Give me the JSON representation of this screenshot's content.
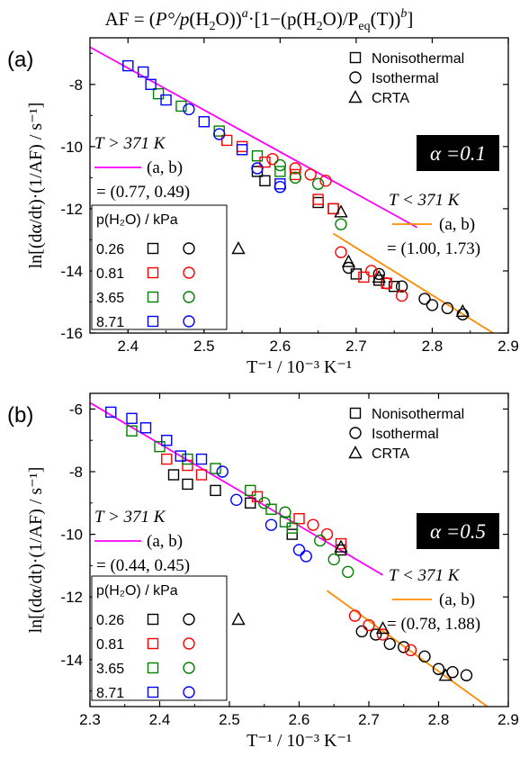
{
  "header": {
    "formula_prefix": "AF = (",
    "p_circ": "P°",
    "slash_p": "/p",
    "h2o": "(H",
    "h2o_sub": "2",
    "h2o_end": "O))",
    "exp_a": "a",
    "dot_bracket": "·[1−(p(H",
    "sub2": "2",
    "o_slash": "O)/P",
    "eq": "eq",
    "t_part": "(T))",
    "exp_b": "b",
    "close": "]"
  },
  "legend_table_title": "p(H₂O) / kPa",
  "marker_legend": [
    "Nonisothermal",
    "Isothermal",
    "CRTA"
  ],
  "colors": {
    "black": "#000000",
    "red": "#ff0000",
    "green": "#008000",
    "blue": "#0000ff",
    "magenta": "#ff00ff",
    "orange": "#ff8c00"
  },
  "chart_data": [
    {
      "type": "scatter",
      "panel_label": "(a)",
      "alpha_label": "α =0.1",
      "xlabel": "T⁻¹ / 10⁻³ K⁻¹",
      "ylabel": "ln[(dα/dt)·(1/AF) / s⁻¹]",
      "xlim": [
        2.35,
        2.9
      ],
      "ylim": [
        -16,
        -6.5
      ],
      "xticks": [
        2.4,
        2.5,
        2.6,
        2.7,
        2.8,
        2.9
      ],
      "yticks": [
        -8,
        -10,
        -12,
        -14,
        -16
      ],
      "high_T": {
        "label": "T > 371 K",
        "ab": "(a, b)",
        "values": "= (0.77, 0.49)",
        "line": [
          [
            2.35,
            -6.8
          ],
          [
            2.78,
            -12.6
          ]
        ]
      },
      "low_T": {
        "label": "T < 371 K",
        "ab": "(a, b)",
        "values": "= (1.00, 1.73)",
        "line": [
          [
            2.67,
            -12.8
          ],
          [
            2.88,
            -16.0
          ]
        ]
      },
      "pressures": [
        {
          "p": "0.26",
          "color": "black",
          "iso": true,
          "crta": true
        },
        {
          "p": "0.81",
          "color": "red",
          "iso": true,
          "crta": false
        },
        {
          "p": "3.65",
          "color": "green",
          "iso": true,
          "crta": false
        },
        {
          "p": "8.71",
          "color": "blue",
          "iso": true,
          "crta": false
        }
      ],
      "series": [
        {
          "marker": "square",
          "color": "black",
          "points": [
            [
              2.57,
              -10.8
            ],
            [
              2.58,
              -11.1
            ],
            [
              2.65,
              -11.8
            ],
            [
              2.67,
              -12.0
            ],
            [
              2.7,
              -14.1
            ],
            [
              2.73,
              -14.3
            ],
            [
              2.75,
              -14.5
            ]
          ]
        },
        {
          "marker": "square",
          "color": "red",
          "points": [
            [
              2.53,
              -9.8
            ],
            [
              2.55,
              -10.0
            ],
            [
              2.58,
              -10.5
            ],
            [
              2.62,
              -10.9
            ],
            [
              2.65,
              -11.7
            ],
            [
              2.67,
              -12.0
            ],
            [
              2.71,
              -14.2
            ],
            [
              2.74,
              -14.4
            ]
          ]
        },
        {
          "marker": "square",
          "color": "green",
          "points": [
            [
              2.44,
              -8.3
            ],
            [
              2.47,
              -8.7
            ],
            [
              2.52,
              -9.5
            ],
            [
              2.57,
              -10.3
            ],
            [
              2.6,
              -10.8
            ]
          ]
        },
        {
          "marker": "square",
          "color": "blue",
          "points": [
            [
              2.4,
              -7.4
            ],
            [
              2.42,
              -7.6
            ],
            [
              2.43,
              -8.0
            ],
            [
              2.45,
              -8.5
            ],
            [
              2.5,
              -9.2
            ],
            [
              2.55,
              -10.1
            ],
            [
              2.6,
              -11.2
            ]
          ]
        },
        {
          "marker": "circle",
          "color": "black",
          "points": [
            [
              2.69,
              -13.9
            ],
            [
              2.73,
              -14.1
            ],
            [
              2.76,
              -14.5
            ],
            [
              2.79,
              -14.9
            ],
            [
              2.8,
              -15.1
            ],
            [
              2.82,
              -15.2
            ],
            [
              2.84,
              -15.4
            ]
          ]
        },
        {
          "marker": "circle",
          "color": "red",
          "points": [
            [
              2.59,
              -10.4
            ],
            [
              2.62,
              -10.7
            ],
            [
              2.64,
              -10.9
            ],
            [
              2.66,
              -11.1
            ],
            [
              2.68,
              -13.4
            ],
            [
              2.72,
              -14.0
            ],
            [
              2.74,
              -14.4
            ],
            [
              2.76,
              -14.8
            ]
          ]
        },
        {
          "marker": "circle",
          "color": "green",
          "points": [
            [
              2.6,
              -10.6
            ],
            [
              2.62,
              -11.0
            ],
            [
              2.65,
              -11.2
            ],
            [
              2.68,
              -12.5
            ]
          ]
        },
        {
          "marker": "circle",
          "color": "blue",
          "points": [
            [
              2.48,
              -8.8
            ],
            [
              2.52,
              -9.6
            ],
            [
              2.57,
              -10.7
            ],
            [
              2.6,
              -11.3
            ]
          ]
        },
        {
          "marker": "triangle",
          "color": "black",
          "points": [
            [
              2.68,
              -12.1
            ],
            [
              2.69,
              -13.7
            ],
            [
              2.73,
              -14.2
            ],
            [
              2.84,
              -15.3
            ]
          ]
        }
      ]
    },
    {
      "type": "scatter",
      "panel_label": "(b)",
      "alpha_label": "α =0.5",
      "xlabel": "T⁻¹ / 10⁻³ K⁻¹",
      "ylabel": "ln[(dα/dt)·(1/AF) / s⁻¹]",
      "xlim": [
        2.3,
        2.9
      ],
      "ylim": [
        -15.5,
        -5.5
      ],
      "xticks": [
        2.3,
        2.4,
        2.5,
        2.6,
        2.7,
        2.8,
        2.9
      ],
      "yticks": [
        -6,
        -8,
        -10,
        -12,
        -14
      ],
      "high_T": {
        "label": "T > 371 K",
        "ab": "(a, b)",
        "values": "= (0.44, 0.45)",
        "line": [
          [
            2.3,
            -5.8
          ],
          [
            2.72,
            -11.3
          ]
        ]
      },
      "low_T": {
        "label": "T < 371 K",
        "ab": "(a, b)",
        "values": "= (0.78, 1.88)",
        "line": [
          [
            2.64,
            -11.8
          ],
          [
            2.87,
            -15.5
          ]
        ]
      },
      "pressures": [
        {
          "p": "0.26",
          "color": "black",
          "iso": true,
          "crta": true
        },
        {
          "p": "0.81",
          "color": "red",
          "iso": true,
          "crta": false
        },
        {
          "p": "3.65",
          "color": "green",
          "iso": true,
          "crta": false
        },
        {
          "p": "8.71",
          "color": "blue",
          "iso": true,
          "crta": false
        }
      ],
      "series": [
        {
          "marker": "square",
          "color": "black",
          "points": [
            [
              2.42,
              -8.1
            ],
            [
              2.44,
              -8.4
            ],
            [
              2.48,
              -8.6
            ],
            [
              2.53,
              -9.0
            ],
            [
              2.59,
              -10.0
            ],
            [
              2.66,
              -10.5
            ]
          ]
        },
        {
          "marker": "square",
          "color": "red",
          "points": [
            [
              2.41,
              -7.6
            ],
            [
              2.44,
              -7.8
            ],
            [
              2.46,
              -8.1
            ],
            [
              2.54,
              -8.8
            ],
            [
              2.6,
              -9.5
            ],
            [
              2.66,
              -10.3
            ]
          ]
        },
        {
          "marker": "square",
          "color": "green",
          "points": [
            [
              2.36,
              -6.7
            ],
            [
              2.4,
              -7.2
            ],
            [
              2.44,
              -7.6
            ],
            [
              2.48,
              -7.9
            ],
            [
              2.53,
              -8.6
            ],
            [
              2.56,
              -9.2
            ],
            [
              2.58,
              -9.6
            ],
            [
              2.59,
              -9.8
            ]
          ]
        },
        {
          "marker": "square",
          "color": "blue",
          "points": [
            [
              2.33,
              -6.1
            ],
            [
              2.36,
              -6.3
            ],
            [
              2.38,
              -6.6
            ],
            [
              2.41,
              -7.0
            ],
            [
              2.43,
              -7.5
            ],
            [
              2.46,
              -7.6
            ]
          ]
        },
        {
          "marker": "circle",
          "color": "black",
          "points": [
            [
              2.69,
              -13.1
            ],
            [
              2.71,
              -13.2
            ],
            [
              2.73,
              -13.5
            ],
            [
              2.75,
              -13.6
            ],
            [
              2.78,
              -13.9
            ],
            [
              2.8,
              -14.3
            ],
            [
              2.82,
              -14.4
            ],
            [
              2.84,
              -14.5
            ]
          ]
        },
        {
          "marker": "circle",
          "color": "red",
          "points": [
            [
              2.62,
              -9.7
            ],
            [
              2.64,
              -10.0
            ],
            [
              2.68,
              -12.6
            ],
            [
              2.7,
              -12.9
            ],
            [
              2.72,
              -13.2
            ],
            [
              2.76,
              -13.7
            ]
          ]
        },
        {
          "marker": "circle",
          "color": "green",
          "points": [
            [
              2.55,
              -9.0
            ],
            [
              2.58,
              -9.3
            ],
            [
              2.63,
              -10.2
            ],
            [
              2.65,
              -10.8
            ],
            [
              2.67,
              -11.2
            ]
          ]
        },
        {
          "marker": "circle",
          "color": "blue",
          "points": [
            [
              2.49,
              -8.0
            ],
            [
              2.51,
              -8.9
            ],
            [
              2.56,
              -9.7
            ],
            [
              2.6,
              -10.5
            ],
            [
              2.61,
              -10.7
            ]
          ]
        },
        {
          "marker": "triangle",
          "color": "black",
          "points": [
            [
              2.66,
              -10.4
            ],
            [
              2.72,
              -13.0
            ],
            [
              2.81,
              -14.5
            ]
          ]
        }
      ]
    }
  ]
}
